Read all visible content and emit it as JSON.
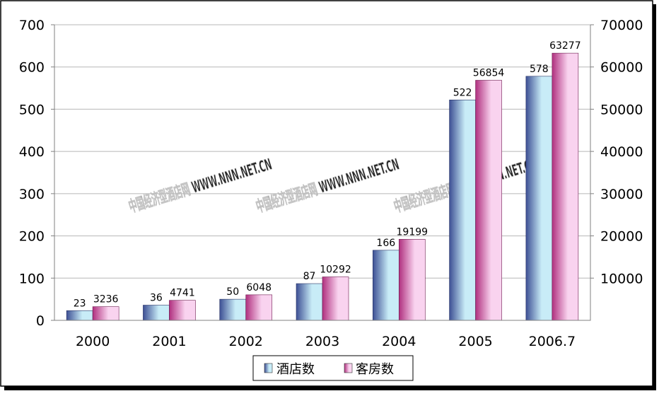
{
  "chart_data": {
    "type": "bar",
    "categories": [
      "2000",
      "2001",
      "2002",
      "2003",
      "2004",
      "2005",
      "2006.7"
    ],
    "series": [
      {
        "name": "酒店数",
        "axis": "left",
        "values": [
          23,
          36,
          50,
          87,
          166,
          522,
          578
        ],
        "labels": [
          "23",
          "36",
          "50",
          "87",
          "166",
          "522",
          "578"
        ]
      },
      {
        "name": "客房数",
        "axis": "right",
        "values": [
          3236,
          4741,
          6048,
          10292,
          19199,
          56854,
          63277
        ],
        "labels": [
          "3236",
          "4741",
          "6048",
          "10292",
          "19199",
          "56854",
          "63277"
        ]
      }
    ],
    "y_left": {
      "min": 0,
      "max": 700,
      "ticks": [
        "0",
        "100",
        "200",
        "300",
        "400",
        "500",
        "600",
        "700"
      ]
    },
    "y_right": {
      "min": 0,
      "max": 70000,
      "ticks": [
        "10000",
        "20000",
        "30000",
        "40000",
        "50000",
        "60000",
        "70000"
      ],
      "tick_values": [
        10000,
        20000,
        30000,
        40000,
        50000,
        60000,
        70000
      ]
    },
    "grid": true,
    "legend": "bottom-center",
    "watermark": "中国经济型酒店网 WWW.NNN.NET.CN",
    "colors": {
      "series1_dark": "#3d4f94",
      "series1_light": "#c8ecf7",
      "series2_dark": "#b0307f",
      "series2_light": "#f9d3ef",
      "grid": "#b7b7b7"
    }
  }
}
